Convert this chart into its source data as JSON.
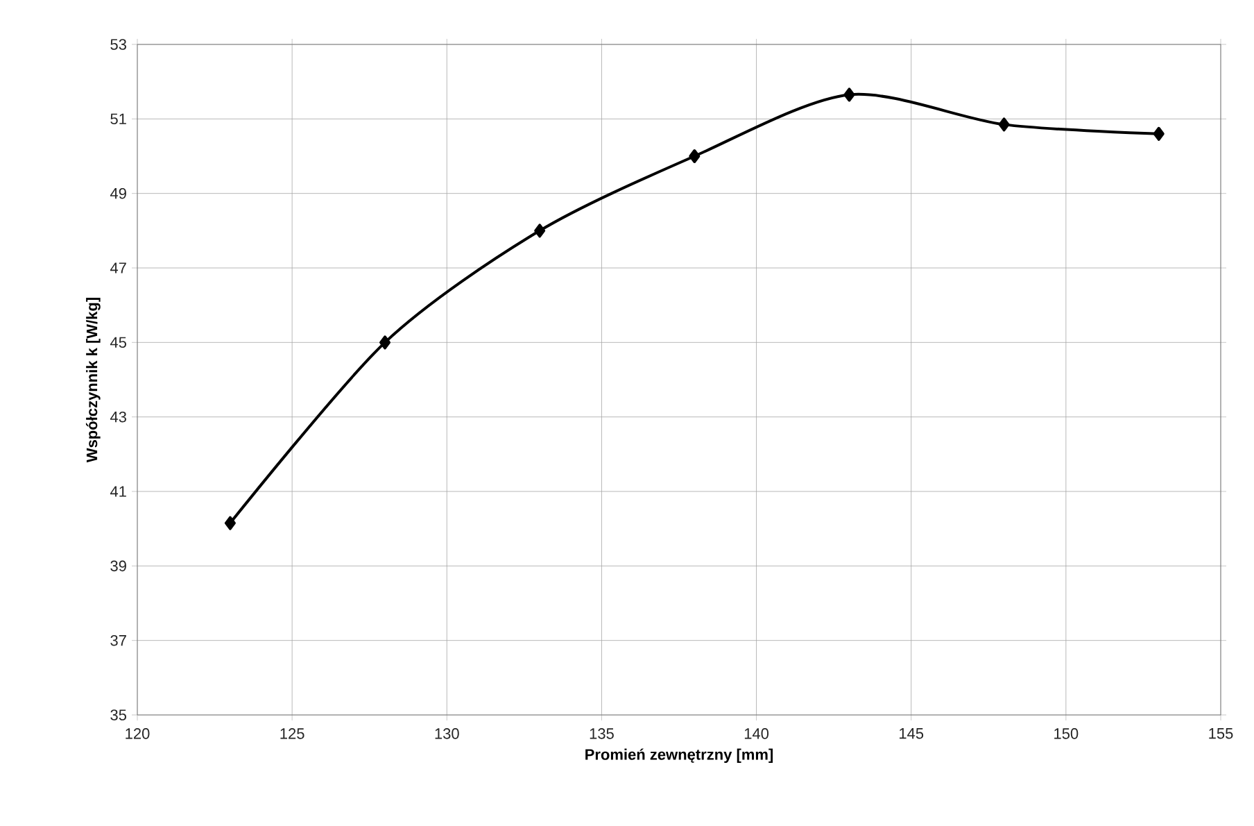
{
  "chart_data": {
    "type": "line",
    "xlabel": "Promień zewnętrzny [mm]",
    "ylabel": "Współczynnik k [W/kg]",
    "x": [
      123,
      128,
      133,
      138,
      143,
      148,
      153
    ],
    "series": [
      {
        "color": "#000000",
        "values": [
          40.15,
          45.0,
          48.0,
          50.0,
          51.65,
          50.85,
          50.6
        ]
      }
    ],
    "xlim": [
      120,
      155
    ],
    "xticks": [
      120,
      125,
      130,
      135,
      140,
      145,
      150,
      155
    ],
    "ylim": [
      35,
      53
    ],
    "yticks": [
      35,
      37,
      39,
      41,
      43,
      45,
      47,
      49,
      51,
      53
    ],
    "grid": true,
    "marker": "diamond",
    "line_style": "solid"
  }
}
